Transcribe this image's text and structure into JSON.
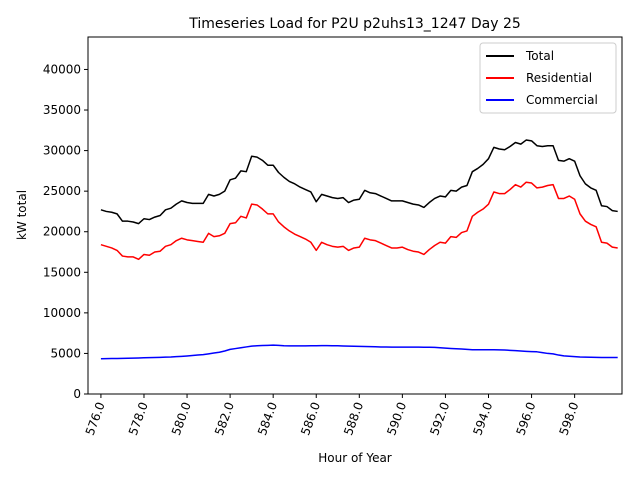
{
  "chart_data": {
    "type": "line",
    "title": "Timeseries Load for P2U p2uhs13_1247  Day 25",
    "xlabel": "Hour of Year",
    "ylabel": "kW total",
    "xlim": [
      575.4,
      600.2
    ],
    "ylim": [
      0,
      44000
    ],
    "xticks": [
      576,
      578,
      580,
      582,
      584,
      586,
      588,
      590,
      592,
      594,
      596,
      598
    ],
    "xtick_labels": [
      "576.0",
      "578.0",
      "580.0",
      "582.0",
      "584.0",
      "586.0",
      "588.0",
      "590.0",
      "592.0",
      "594.0",
      "596.0",
      "598.0"
    ],
    "yticks": [
      0,
      5000,
      10000,
      15000,
      20000,
      25000,
      30000,
      35000,
      40000
    ],
    "ytick_labels": [
      "0",
      "5000",
      "10000",
      "15000",
      "20000",
      "25000",
      "30000",
      "35000",
      "40000"
    ],
    "grid": false,
    "legend_position": "top-right",
    "x_start": 576,
    "x_step": 0.25,
    "series": [
      {
        "name": "Total",
        "color": "#000000",
        "values": [
          22700,
          22500,
          22400,
          22200,
          21300,
          21300,
          21200,
          21000,
          21600,
          21500,
          21800,
          22000,
          22700,
          22900,
          23400,
          23800,
          23600,
          23500,
          23500,
          23500,
          24600,
          24400,
          24600,
          25000,
          26400,
          26600,
          27500,
          27400,
          29300,
          29200,
          28800,
          28200,
          28200,
          27300,
          26700,
          26200,
          25900,
          25500,
          25200,
          24900,
          23700,
          24600,
          24400,
          24200,
          24100,
          24200,
          23600,
          23900,
          24000,
          25100,
          24800,
          24700,
          24400,
          24100,
          23800,
          23800,
          23800,
          23600,
          23400,
          23300,
          23000,
          23600,
          24100,
          24400,
          24300,
          25100,
          25000,
          25500,
          25700,
          27400,
          27800,
          28300,
          29000,
          30400,
          30200,
          30100,
          30500,
          31000,
          30800,
          31300,
          31200,
          30600,
          30500,
          30600,
          30600,
          28800,
          28700,
          29000,
          28700,
          26900,
          25900,
          25400,
          25100,
          23200,
          23100,
          22600,
          22500
        ]
      },
      {
        "name": "Residential",
        "color": "#ff0000",
        "values": [
          18400,
          18200,
          18000,
          17700,
          17000,
          16900,
          16900,
          16600,
          17200,
          17100,
          17500,
          17600,
          18200,
          18400,
          18900,
          19200,
          19000,
          18900,
          18800,
          18700,
          19800,
          19400,
          19500,
          19800,
          21000,
          21100,
          21900,
          21700,
          23400,
          23300,
          22800,
          22200,
          22200,
          21200,
          20600,
          20100,
          19700,
          19400,
          19100,
          18700,
          17700,
          18700,
          18400,
          18200,
          18100,
          18200,
          17700,
          18000,
          18100,
          19200,
          19000,
          18900,
          18600,
          18300,
          18000,
          18000,
          18100,
          17800,
          17600,
          17500,
          17200,
          17800,
          18300,
          18700,
          18600,
          19400,
          19300,
          19900,
          20100,
          21900,
          22400,
          22800,
          23400,
          24900,
          24700,
          24700,
          25200,
          25800,
          25500,
          26100,
          26000,
          25400,
          25500,
          25700,
          25800,
          24100,
          24100,
          24400,
          24000,
          22200,
          21300,
          20900,
          20600,
          18700,
          18600,
          18100,
          18000
        ]
      },
      {
        "name": "Commercial",
        "color": "#0000ff",
        "values": [
          4350,
          4360,
          4370,
          4380,
          4390,
          4400,
          4420,
          4440,
          4460,
          4480,
          4500,
          4520,
          4540,
          4560,
          4600,
          4640,
          4690,
          4740,
          4800,
          4860,
          4950,
          5050,
          5150,
          5300,
          5500,
          5600,
          5700,
          5800,
          5900,
          5950,
          5980,
          6000,
          6020,
          6000,
          5950,
          5930,
          5930,
          5930,
          5930,
          5940,
          5950,
          5960,
          5960,
          5950,
          5940,
          5920,
          5900,
          5880,
          5870,
          5860,
          5840,
          5820,
          5800,
          5790,
          5780,
          5780,
          5780,
          5770,
          5770,
          5770,
          5760,
          5760,
          5750,
          5700,
          5650,
          5610,
          5580,
          5540,
          5500,
          5460,
          5450,
          5460,
          5460,
          5460,
          5440,
          5430,
          5380,
          5340,
          5300,
          5260,
          5230,
          5200,
          5100,
          5000,
          4950,
          4800,
          4700,
          4650,
          4600,
          4560,
          4540,
          4530,
          4510,
          4500,
          4500,
          4500,
          4500
        ]
      }
    ]
  }
}
